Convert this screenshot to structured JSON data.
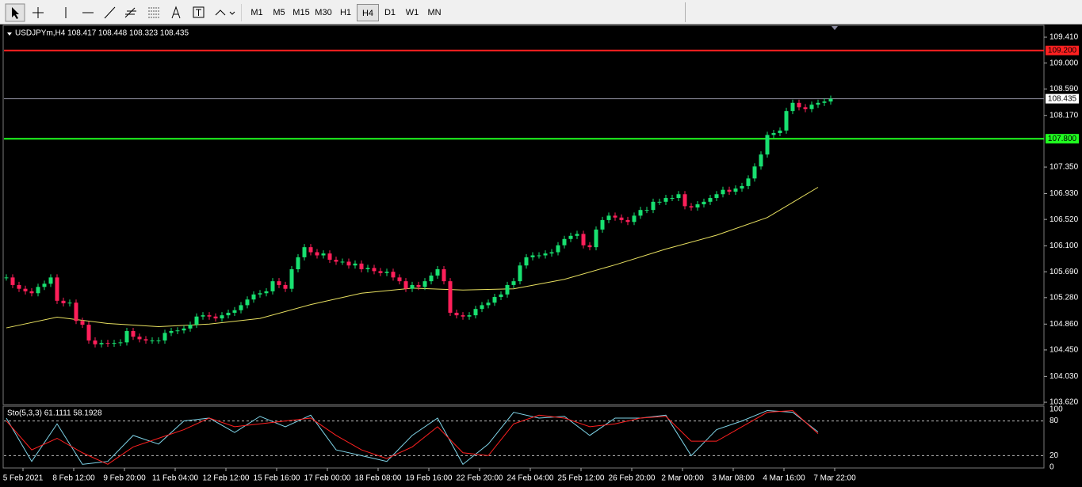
{
  "toolbar": {
    "timeframes": [
      "M1",
      "M5",
      "M15",
      "M30",
      "H1",
      "H4",
      "D1",
      "W1",
      "MN"
    ],
    "active": "H4"
  },
  "chart_data": [
    {
      "type": "candlestick",
      "header": "USDJPYm,H4  108.417 108.448 108.323 108.435",
      "up_color": "#18e070",
      "down_color": "#ff1f5a",
      "ylim": [
        103.595,
        109.586
      ],
      "yticks": [
        {
          "value": 109.41,
          "label": "109.410"
        },
        {
          "value": 109.0,
          "label": "109.000"
        },
        {
          "value": 108.59,
          "label": "108.590"
        },
        {
          "value": 108.17,
          "label": "108.170"
        },
        {
          "value": 107.35,
          "label": "107.350"
        },
        {
          "value": 106.93,
          "label": "106.930"
        },
        {
          "value": 106.52,
          "label": "106.520"
        },
        {
          "value": 106.1,
          "label": "106.100"
        },
        {
          "value": 105.69,
          "label": "105.690"
        },
        {
          "value": 105.28,
          "label": "105.280"
        },
        {
          "value": 104.86,
          "label": "104.860"
        },
        {
          "value": 104.45,
          "label": "104.450"
        },
        {
          "value": 104.03,
          "label": "104.030"
        },
        {
          "value": 103.62,
          "label": "103.620"
        }
      ],
      "lines": [
        {
          "value": 109.2,
          "label": "109.200",
          "color": "#ff2020"
        },
        {
          "value": 107.8,
          "label": "107.800",
          "color": "#20ff20"
        }
      ],
      "current": {
        "value": 108.435,
        "label": "108.435",
        "color": "#8a8a9a"
      },
      "x_labels": [
        "5 Feb 2021",
        "8 Feb 12:00",
        "9 Feb 20:00",
        "11 Feb 04:00",
        "12 Feb 12:00",
        "15 Feb 16:00",
        "17 Feb 00:00",
        "18 Feb 08:00",
        "19 Feb 16:00",
        "22 Feb 20:00",
        "24 Feb 04:00",
        "25 Feb 12:00",
        "26 Feb 20:00",
        "2 Mar 00:00",
        "3 Mar 08:00",
        "4 Mar 16:00",
        "7 Mar 22:00"
      ],
      "closes": [
        105.6,
        105.48,
        105.42,
        105.38,
        105.35,
        105.45,
        105.5,
        105.6,
        105.23,
        105.19,
        105.2,
        104.91,
        104.85,
        104.6,
        104.54,
        104.56,
        104.55,
        104.56,
        104.57,
        104.75,
        104.66,
        104.62,
        104.6,
        104.6,
        104.6,
        104.72,
        104.75,
        104.76,
        104.79,
        104.85,
        104.98,
        105.0,
        104.98,
        104.95,
        105.0,
        105.04,
        105.08,
        105.16,
        105.25,
        105.33,
        105.35,
        105.38,
        105.54,
        105.48,
        105.42,
        105.73,
        105.92,
        106.08,
        106.0,
        105.95,
        105.98,
        105.88,
        105.85,
        105.85,
        105.79,
        105.82,
        105.73,
        105.75,
        105.7,
        105.67,
        105.69,
        105.6,
        105.54,
        105.42,
        105.48,
        105.45,
        105.54,
        105.63,
        105.73,
        105.54,
        105.04,
        105.0,
        104.98,
        105.0,
        105.1,
        105.16,
        105.2,
        105.29,
        105.33,
        105.48,
        105.54,
        105.79,
        105.92,
        105.95,
        105.95,
        105.98,
        106.0,
        106.11,
        106.21,
        106.26,
        106.29,
        106.11,
        106.08,
        106.36,
        106.51,
        106.58,
        106.55,
        106.51,
        106.48,
        106.58,
        106.67,
        106.67,
        106.8,
        106.8,
        106.86,
        106.86,
        106.92,
        106.73,
        106.71,
        106.76,
        106.8,
        106.86,
        106.92,
        106.99,
        106.96,
        107.01,
        107.05,
        107.17,
        107.36,
        107.55,
        107.86,
        107.89,
        107.93,
        108.24,
        108.37,
        108.3,
        108.27,
        108.34,
        108.37,
        108.39,
        108.435
      ],
      "ma": {
        "color": "#e8e060",
        "values": [
          104.8,
          104.97,
          104.87,
          104.82,
          104.86,
          104.95,
          105.17,
          105.35,
          105.43,
          105.4,
          105.42,
          105.57,
          105.8,
          106.05,
          106.27,
          106.55,
          107.03
        ]
      }
    },
    {
      "type": "line",
      "header": "Sto(5,3,3) 61.1111 58.1928",
      "ylim": [
        0,
        100
      ],
      "yticks": [
        100,
        80,
        20,
        0
      ],
      "series": [
        {
          "color": "#7fd4e8",
          "values": [
            85,
            10,
            75,
            5,
            10,
            55,
            40,
            80,
            85,
            60,
            88,
            70,
            90,
            30,
            20,
            10,
            55,
            85,
            5,
            40,
            95,
            85,
            88,
            55,
            85,
            85,
            90,
            20,
            65,
            80,
            98,
            95,
            61
          ]
        },
        {
          "color": "#ff2020",
          "values": [
            80,
            30,
            50,
            25,
            5,
            35,
            50,
            65,
            85,
            70,
            75,
            80,
            85,
            55,
            30,
            15,
            35,
            70,
            25,
            20,
            75,
            90,
            85,
            70,
            75,
            85,
            88,
            45,
            45,
            70,
            95,
            98,
            58
          ]
        }
      ]
    }
  ]
}
